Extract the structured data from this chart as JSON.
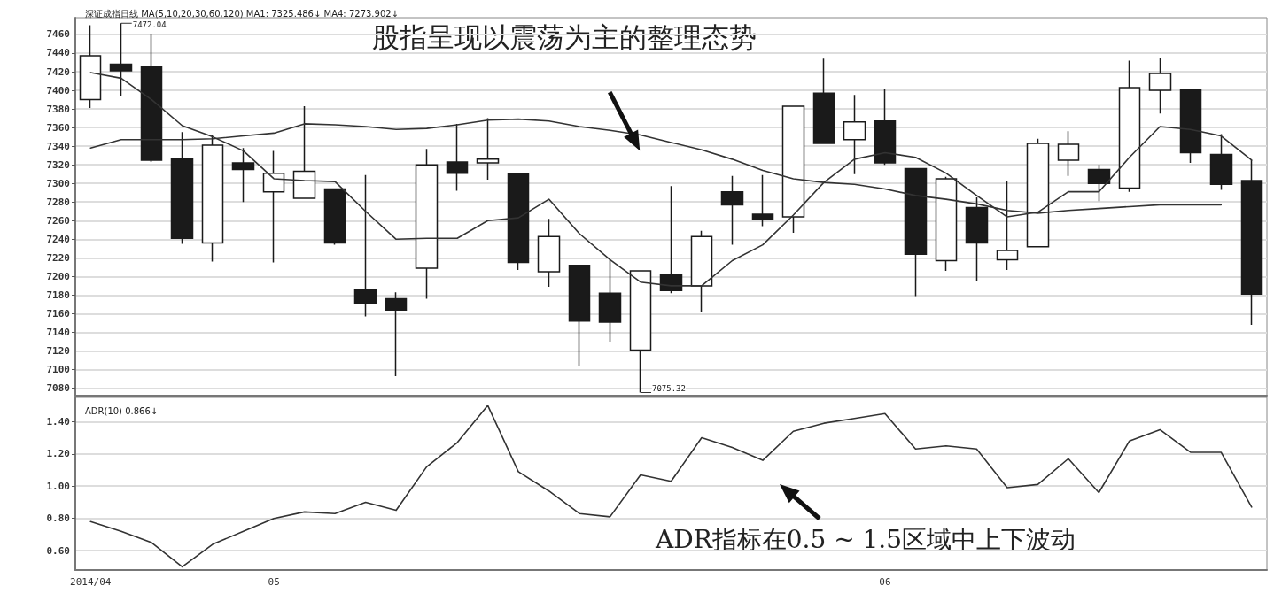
{
  "chart_data": [
    {
      "type": "candlestick",
      "title": "深证成指日线 MA(5,10,20,30,60,120) MA1: 7325.486↓ MA4: 7273.902↓",
      "categories": [
        "2014/04",
        null,
        null,
        null,
        null,
        null,
        "05",
        null,
        null,
        null,
        null,
        null,
        null,
        null,
        null,
        null,
        null,
        null,
        null,
        null,
        null,
        null,
        null,
        null,
        null,
        null,
        "06",
        null,
        null,
        null,
        null,
        null,
        null,
        null,
        null,
        null,
        null,
        null,
        null
      ],
      "color": "#1a1a1a",
      "ohlc": [
        [
          7390,
          7470,
          7381,
          7437
        ],
        [
          7428,
          7472.04,
          7394,
          7421
        ],
        [
          7425,
          7461,
          7323,
          7325
        ],
        [
          7326,
          7355,
          7235,
          7241
        ],
        [
          7236,
          7352,
          7216,
          7341
        ],
        [
          7322,
          7338,
          7280,
          7315
        ],
        [
          7291,
          7335,
          7215,
          7311
        ],
        [
          7284,
          7383,
          7284,
          7313
        ],
        [
          7294,
          7294,
          7234,
          7236
        ],
        [
          7186,
          7309,
          7157,
          7171
        ],
        [
          7176,
          7183,
          7093,
          7164
        ],
        [
          7209,
          7337,
          7176,
          7320
        ],
        [
          7323,
          7364,
          7292,
          7311
        ],
        [
          7322,
          7370,
          7304,
          7326
        ],
        [
          7311,
          7311,
          7207,
          7215
        ],
        [
          7205,
          7262,
          7189,
          7243
        ],
        [
          7212,
          7212,
          7104,
          7152
        ],
        [
          7182,
          7218,
          7130,
          7151
        ],
        [
          7121,
          7206,
          7075.32,
          7206
        ],
        [
          7202,
          7297,
          7182,
          7185
        ],
        [
          7190,
          7249,
          7162,
          7243
        ],
        [
          7291,
          7308,
          7234,
          7277
        ],
        [
          7267,
          7309,
          7254,
          7261
        ],
        [
          7264,
          7383,
          7247,
          7383
        ],
        [
          7397,
          7434,
          7343,
          7343
        ],
        [
          7347,
          7395,
          7310,
          7366
        ],
        [
          7367,
          7402,
          7320,
          7322
        ],
        [
          7316,
          7316,
          7179,
          7224
        ],
        [
          7217,
          7307,
          7206,
          7305
        ],
        [
          7274,
          7285,
          7195,
          7236
        ],
        [
          7218,
          7303,
          7207,
          7228
        ],
        [
          7232,
          7348,
          7232,
          7343
        ],
        [
          7325,
          7356,
          7308,
          7342
        ],
        [
          7315,
          7320,
          7281,
          7300
        ],
        [
          7295,
          7432,
          7291,
          7403
        ],
        [
          7400,
          7435,
          7375,
          7418
        ],
        [
          7401,
          7401,
          7322,
          7333
        ],
        [
          7331,
          7353,
          7293,
          7299
        ],
        [
          7303,
          7325,
          7148,
          7181
        ]
      ],
      "series": [
        {
          "type": "line",
          "color": "#333333",
          "values": [
            7419,
            7413,
            7390,
            7362,
            7350,
            7335,
            7305,
            7303,
            7302,
            7270,
            7240,
            7241,
            7241,
            7260,
            7263,
            7283,
            7246,
            7218,
            7194,
            7190,
            7190,
            7217,
            7234,
            7266,
            7301,
            7326,
            7333,
            7328,
            7311,
            7287,
            7264,
            7269,
            7291,
            7291,
            7328,
            7361,
            7358,
            7351,
            7325
          ]
        },
        {
          "type": "line",
          "color": "#333333",
          "values": [
            7338,
            7347,
            7347,
            7347,
            7348,
            7351,
            7354,
            7364,
            7363,
            7361,
            7358,
            7359,
            7363,
            7368,
            7369,
            7367,
            7361,
            7357,
            7352,
            7344,
            7336,
            7326,
            7314,
            7305,
            7301,
            7299,
            7294,
            7287,
            7283,
            7278,
            7271,
            7268,
            7271,
            7273,
            7275,
            7277,
            7277,
            7277,
            null
          ]
        }
      ],
      "ylim": [
        7072,
        7478
      ],
      "yticks": [
        7080,
        7100,
        7120,
        7140,
        7160,
        7180,
        7200,
        7220,
        7240,
        7260,
        7280,
        7300,
        7320,
        7340,
        7360,
        7380,
        7400,
        7420,
        7440,
        7460
      ],
      "grid": "y",
      "tick_labels": "y",
      "marker": "none",
      "line_style": "solid",
      "annotations": [
        "股指呈现以震荡为主的整理态势",
        "7472.04",
        "7075.32"
      ]
    },
    {
      "type": "line",
      "title": "ADR(10) 0.866↓",
      "categories": [
        "2014/04",
        null,
        null,
        null,
        null,
        null,
        "05",
        null,
        null,
        null,
        null,
        null,
        null,
        null,
        null,
        null,
        null,
        null,
        null,
        null,
        null,
        null,
        null,
        null,
        null,
        null,
        "06",
        null,
        null,
        null,
        null,
        null,
        null,
        null,
        null,
        null,
        null,
        null,
        null
      ],
      "series": [
        {
          "color": "#333333",
          "values": [
            0.78,
            0.72,
            0.65,
            0.5,
            0.64,
            0.72,
            0.8,
            0.84,
            0.83,
            0.9,
            0.85,
            1.12,
            1.27,
            1.5,
            1.09,
            0.97,
            0.83,
            0.81,
            1.07,
            1.03,
            1.3,
            1.24,
            1.16,
            1.34,
            1.39,
            1.42,
            1.45,
            1.23,
            1.25,
            1.23,
            0.99,
            1.01,
            1.17,
            0.96,
            1.28,
            1.35,
            1.21,
            1.21,
            0.87
          ]
        }
      ],
      "ylim": [
        0.48,
        1.55
      ],
      "yticks": [
        {
          "value": 0.6,
          "label": "0.60"
        },
        {
          "value": 0.8,
          "label": "0.80"
        },
        {
          "value": 1.0,
          "label": "1.00"
        },
        {
          "value": 1.2,
          "label": "1.20"
        },
        {
          "value": 1.4,
          "label": "1.40"
        }
      ],
      "grid": "y",
      "marker": "none",
      "line_style": "solid",
      "annotations": [
        "ADR指标在0.5 ~ 1.5区域中上下波动"
      ]
    }
  ]
}
